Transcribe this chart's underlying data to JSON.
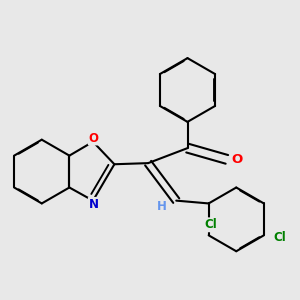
{
  "bg_color": "#e8e8e8",
  "bond_color": "#000000",
  "atom_colors": {
    "O": "#ff0000",
    "N": "#0000cd",
    "Cl": "#008000",
    "H": "#6495ed",
    "C": "#000000"
  },
  "line_width": 1.5,
  "fig_width": 3.0,
  "fig_height": 3.0,
  "dpi": 100,
  "font_size": 8.5
}
